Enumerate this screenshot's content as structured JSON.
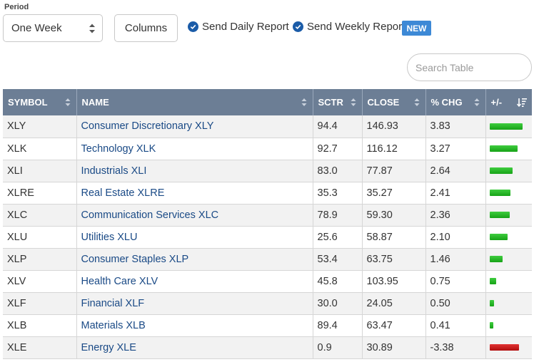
{
  "controls": {
    "period_label": "Period",
    "period_value": "One Week",
    "columns_label": "Columns",
    "daily_report_label": "Send Daily Report",
    "weekly_report_label": "Send Weekly Report",
    "new_badge": "NEW",
    "search_placeholder": "Search Table"
  },
  "table": {
    "headers": [
      "SYMBOL",
      "NAME",
      "SCTR",
      "CLOSE",
      "% CHG",
      "+/-"
    ],
    "rows": [
      {
        "symbol": "XLY",
        "name": "Consumer Discretionary XLY",
        "sctr": "94.4",
        "close": "146.93",
        "chg": "3.83",
        "bar": 3.83
      },
      {
        "symbol": "XLK",
        "name": "Technology XLK",
        "sctr": "92.7",
        "close": "116.12",
        "chg": "3.27",
        "bar": 3.27
      },
      {
        "symbol": "XLI",
        "name": "Industrials XLI",
        "sctr": "83.0",
        "close": "77.87",
        "chg": "2.64",
        "bar": 2.64
      },
      {
        "symbol": "XLRE",
        "name": "Real Estate XLRE",
        "sctr": "35.3",
        "close": "35.27",
        "chg": "2.41",
        "bar": 2.41
      },
      {
        "symbol": "XLC",
        "name": "Communication Services XLC",
        "sctr": "78.9",
        "close": "59.30",
        "chg": "2.36",
        "bar": 2.36
      },
      {
        "symbol": "XLU",
        "name": "Utilities XLU",
        "sctr": "25.6",
        "close": "58.87",
        "chg": "2.10",
        "bar": 2.1
      },
      {
        "symbol": "XLP",
        "name": "Consumer Staples XLP",
        "sctr": "53.4",
        "close": "63.75",
        "chg": "1.46",
        "bar": 1.46
      },
      {
        "symbol": "XLV",
        "name": "Health Care XLV",
        "sctr": "45.8",
        "close": "103.95",
        "chg": "0.75",
        "bar": 0.75
      },
      {
        "symbol": "XLF",
        "name": "Financial XLF",
        "sctr": "30.0",
        "close": "24.05",
        "chg": "0.50",
        "bar": 0.5
      },
      {
        "symbol": "XLB",
        "name": "Materials XLB",
        "sctr": "89.4",
        "close": "63.47",
        "chg": "0.41",
        "bar": 0.41
      },
      {
        "symbol": "XLE",
        "name": "Energy XLE",
        "sctr": "0.9",
        "close": "30.89",
        "chg": "-3.38",
        "bar": -3.38
      }
    ]
  },
  "colors": {
    "header_bg": "#6c7e95",
    "link": "#1a4a86",
    "check": "#1b5ca8",
    "badge": "#3d89d6",
    "bar_positive": "#22b322",
    "bar_negative": "#c81a1a"
  },
  "icons": [
    "select-arrows-icon",
    "check-circle-icon",
    "sort-arrows-icon",
    "sort-descending-icon"
  ]
}
